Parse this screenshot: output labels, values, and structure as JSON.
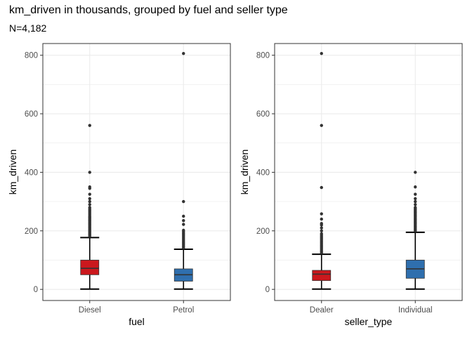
{
  "title": "km_driven in thousands, grouped by fuel and seller type",
  "subtitle": "N=4,182",
  "colors": {
    "red": "#cb181d",
    "blue": "#2f6fae",
    "grid": "#ebebeb",
    "outlier": "#333333",
    "axis_text": "#4d4d4d"
  },
  "chart_data": [
    {
      "type": "box",
      "xlabel": "fuel",
      "ylabel": "km_driven",
      "ylim": [
        -38,
        840
      ],
      "yticks": [
        0,
        200,
        400,
        600,
        800
      ],
      "grid": true,
      "categories": [
        "Diesel",
        "Petrol"
      ],
      "boxes": [
        {
          "category": "Diesel",
          "color": "#cb181d",
          "whisker_low": 1,
          "q1": 50,
          "median": 72,
          "q3": 100,
          "whisker_high": 177,
          "outliers": [
            182,
            186,
            190,
            194,
            198,
            202,
            206,
            210,
            214,
            218,
            222,
            226,
            230,
            234,
            238,
            242,
            246,
            250,
            255,
            260,
            265,
            270,
            275,
            280,
            290,
            300,
            310,
            325,
            345,
            350,
            400,
            560
          ]
        },
        {
          "category": "Petrol",
          "color": "#2f6fae",
          "whisker_low": 1,
          "q1": 28,
          "median": 50,
          "q3": 70,
          "whisker_high": 137,
          "outliers": [
            142,
            147,
            152,
            157,
            162,
            167,
            172,
            177,
            182,
            187,
            192,
            197,
            202,
            222,
            235,
            250,
            300,
            806
          ]
        }
      ]
    },
    {
      "type": "box",
      "xlabel": "seller_type",
      "ylabel": "km_driven",
      "ylim": [
        -38,
        840
      ],
      "yticks": [
        0,
        200,
        400,
        600,
        800
      ],
      "grid": true,
      "categories": [
        "Dealer",
        "Individual"
      ],
      "boxes": [
        {
          "category": "Dealer",
          "color": "#cb181d",
          "whisker_low": 1,
          "q1": 30,
          "median": 52,
          "q3": 65,
          "whisker_high": 120,
          "outliers": [
            125,
            130,
            135,
            140,
            145,
            150,
            155,
            160,
            165,
            170,
            175,
            180,
            185,
            190,
            200,
            210,
            220,
            225,
            240,
            258,
            348,
            560,
            806
          ]
        },
        {
          "category": "Individual",
          "color": "#2f6fae",
          "whisker_low": 1,
          "q1": 38,
          "median": 70,
          "q3": 100,
          "whisker_high": 195,
          "outliers": [
            200,
            204,
            208,
            212,
            216,
            220,
            224,
            228,
            232,
            236,
            240,
            244,
            248,
            252,
            256,
            260,
            264,
            268,
            272,
            276,
            280,
            290,
            300,
            310,
            325,
            350,
            400
          ]
        }
      ]
    }
  ]
}
